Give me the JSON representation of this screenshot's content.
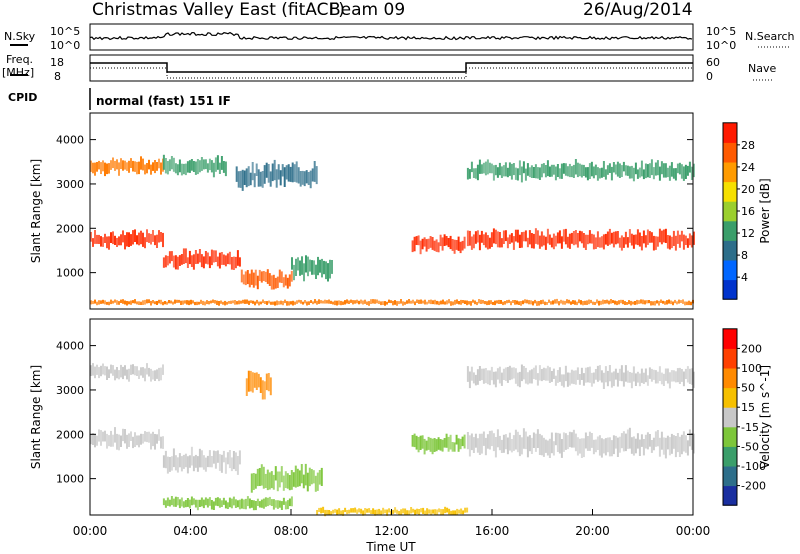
{
  "header": {
    "station": "Christmas Valley East (fitACF)",
    "beam": "Beam 09",
    "date": "26/Aug/2014"
  },
  "top_strip": {
    "nsky_label": "N.Sky",
    "nsky_ticks": [
      "10^5",
      "10^0"
    ],
    "nsearch_label": "N.Search",
    "nsearch_ticks": [
      "10^5",
      "10^0"
    ],
    "freq_label": "Freq.",
    "freq_unit": "[MHz]",
    "freq_ticks": [
      "18",
      "8"
    ],
    "nave_label": "Nave",
    "nave_ticks": [
      "60",
      "0"
    ],
    "cpid_label": "CPID",
    "cpid_value": "normal (fast) 151 IF"
  },
  "chart_data": [
    {
      "type": "heatmap",
      "name": "power-panel",
      "ylabel": "Slant Range [km]",
      "ylim": [
        180,
        4600
      ],
      "y_ticks": [
        "1000",
        "2000",
        "3000",
        "4000"
      ],
      "xlim": [
        0,
        24
      ],
      "colorbar": {
        "label": "Power [dB]",
        "ticks": [
          "4",
          "8",
          "12",
          "16",
          "20",
          "24",
          "28"
        ],
        "colors": [
          "#0033cc",
          "#0066ff",
          "#2d6e8a",
          "#3a9e6a",
          "#9bcf2e",
          "#f6e000",
          "#ff9b00",
          "#ff5a00",
          "#ff1a00"
        ]
      },
      "bands": [
        {
          "x0": 0.0,
          "x1": 2.9,
          "r_center": 3400,
          "r_width": 260,
          "color": "#ff7a00"
        },
        {
          "x0": 0.0,
          "x1": 2.9,
          "r_center": 1750,
          "r_width": 280,
          "color": "#ff2a00"
        },
        {
          "x0": 2.9,
          "x1": 6.0,
          "r_center": 1300,
          "r_width": 300,
          "color": "#ff2a00"
        },
        {
          "x0": 2.9,
          "x1": 5.4,
          "r_center": 3400,
          "r_width": 300,
          "color": "#3a9e6a"
        },
        {
          "x0": 5.8,
          "x1": 9.0,
          "r_center": 3200,
          "r_width": 400,
          "color": "#2d6e8a"
        },
        {
          "x0": 6.0,
          "x1": 8.0,
          "r_center": 850,
          "r_width": 300,
          "color": "#ff5a00"
        },
        {
          "x0": 8.0,
          "x1": 9.6,
          "r_center": 1100,
          "r_width": 380,
          "color": "#3a9e6a"
        },
        {
          "x0": 12.8,
          "x1": 14.9,
          "r_center": 1650,
          "r_width": 280,
          "color": "#ff2a00"
        },
        {
          "x0": 15.0,
          "x1": 24.0,
          "r_center": 1750,
          "r_width": 300,
          "color": "#ff2a00"
        },
        {
          "x0": 15.0,
          "x1": 24.0,
          "r_center": 3300,
          "r_width": 300,
          "color": "#3a9e6a"
        },
        {
          "x0": 0.0,
          "x1": 24.0,
          "r_center": 330,
          "r_width": 90,
          "color": "#ff7a00"
        }
      ]
    },
    {
      "type": "heatmap",
      "name": "velocity-panel",
      "ylabel": "Slant Range [km]",
      "xlabel": "Time UT",
      "ylim": [
        180,
        4600
      ],
      "y_ticks": [
        "1000",
        "2000",
        "3000",
        "4000"
      ],
      "x_ticks": [
        "00:00",
        "04:00",
        "08:00",
        "12:00",
        "16:00",
        "20:00",
        "00:00"
      ],
      "xlim": [
        0,
        24
      ],
      "colorbar": {
        "label": "Velocity [m s^-1]",
        "ticks": [
          "200",
          "100",
          "50",
          "15",
          "-15",
          "-50",
          "-100",
          "-200"
        ],
        "colors": [
          "#1a2fa0",
          "#2d6e8a",
          "#3a9e6a",
          "#7dc63a",
          "#c8c8c8",
          "#f6c000",
          "#ff8a00",
          "#ff4000",
          "#ff0000"
        ]
      },
      "bands": [
        {
          "x0": 0.0,
          "x1": 2.9,
          "r_center": 3400,
          "r_width": 260,
          "color": "#c8c8c8"
        },
        {
          "x0": 0.0,
          "x1": 2.9,
          "r_center": 1900,
          "r_width": 300,
          "color": "#c8c8c8"
        },
        {
          "x0": 2.9,
          "x1": 6.0,
          "r_center": 1400,
          "r_width": 360,
          "color": "#c8c8c8"
        },
        {
          "x0": 6.2,
          "x1": 7.2,
          "r_center": 3100,
          "r_width": 420,
          "color": "#ff8a00"
        },
        {
          "x0": 6.4,
          "x1": 9.2,
          "r_center": 1000,
          "r_width": 420,
          "color": "#7dc63a"
        },
        {
          "x0": 2.9,
          "x1": 8.0,
          "r_center": 450,
          "r_width": 200,
          "color": "#7dc63a"
        },
        {
          "x0": 9.0,
          "x1": 15.0,
          "r_center": 260,
          "r_width": 120,
          "color": "#f6c000"
        },
        {
          "x0": 12.8,
          "x1": 14.9,
          "r_center": 1800,
          "r_width": 300,
          "color": "#7dc63a"
        },
        {
          "x0": 15.0,
          "x1": 24.0,
          "r_center": 1800,
          "r_width": 400,
          "color": "#c8c8c8"
        },
        {
          "x0": 15.0,
          "x1": 24.0,
          "r_center": 3300,
          "r_width": 320,
          "color": "#c8c8c8"
        }
      ]
    }
  ]
}
